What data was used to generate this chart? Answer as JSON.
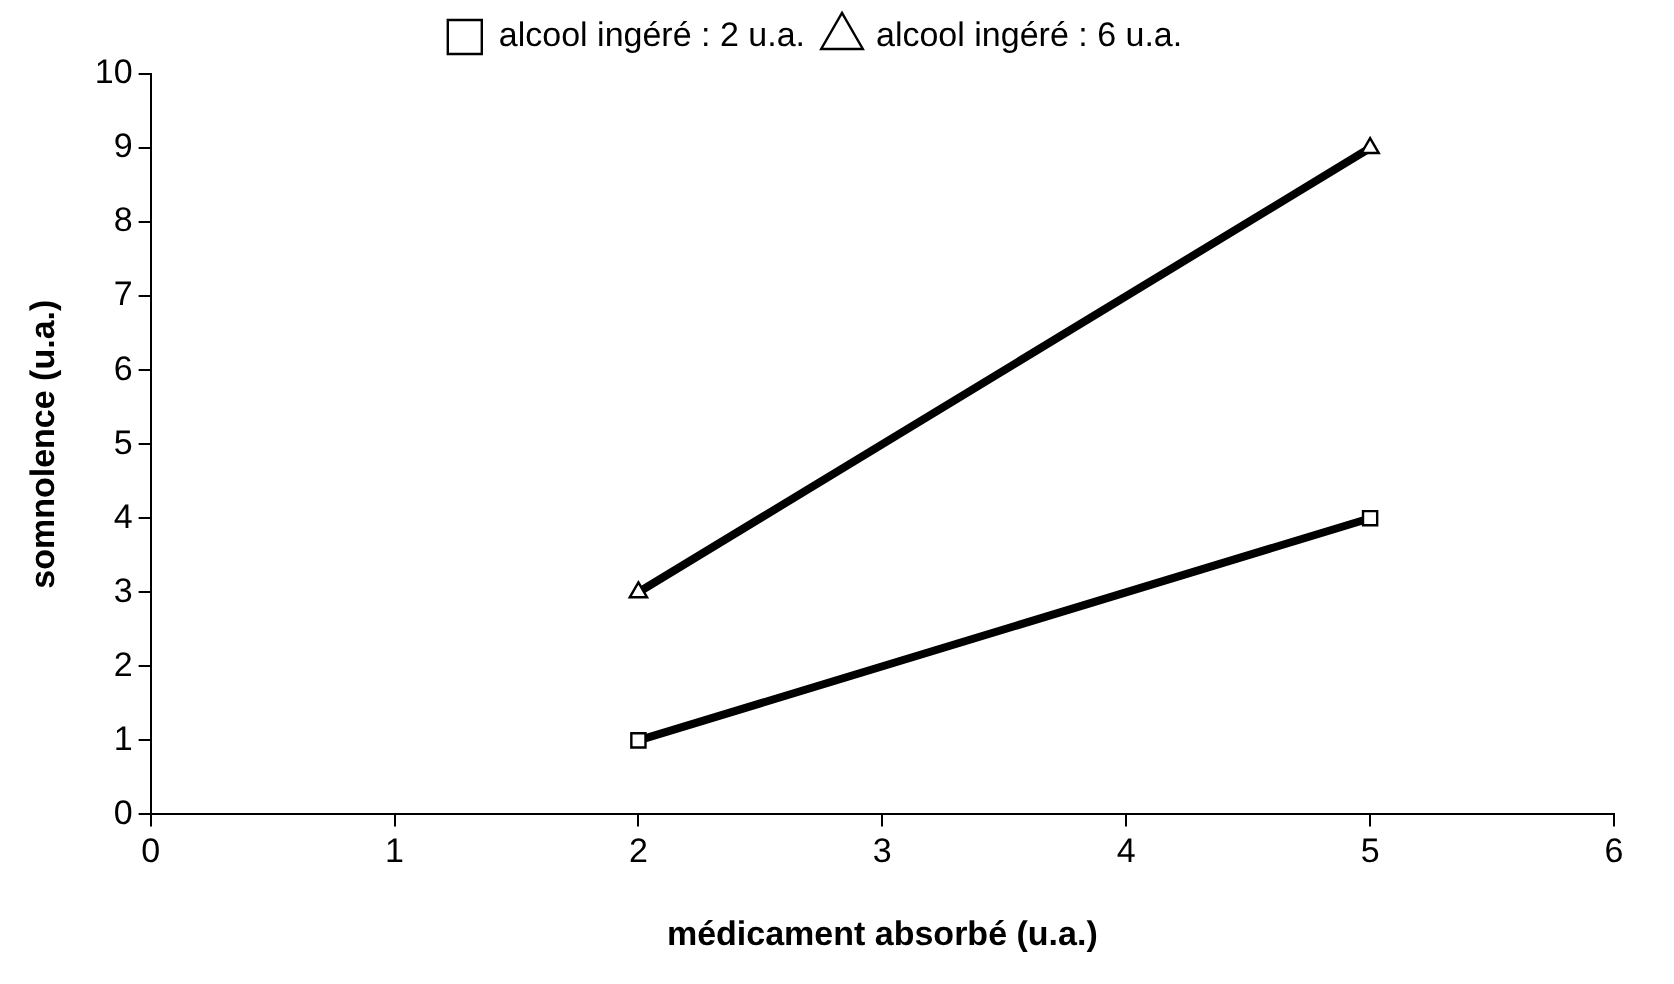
{
  "chart_data": {
    "type": "line",
    "xlabel": "médicament absorbé (u.a.)",
    "ylabel": "somnolence (u.a.)",
    "x": [
      2,
      5
    ],
    "series": [
      {
        "name": "alcool ingéré : 2 u.a.",
        "color": "#000000",
        "values": [
          1,
          4
        ],
        "marker": "square"
      },
      {
        "name": "alcool ingéré : 6 u.a.",
        "color": "#000000",
        "values": [
          3,
          9
        ],
        "marker": "triangle"
      }
    ],
    "xlim": [
      0,
      6
    ],
    "xticks": [
      0,
      1,
      2,
      3,
      4,
      5,
      6
    ],
    "ylim": [
      0,
      10
    ],
    "yticks": [
      0,
      1,
      2,
      3,
      4,
      5,
      6,
      7,
      8,
      9,
      10
    ],
    "grid": false,
    "legend": "top",
    "line_style": "solid"
  }
}
